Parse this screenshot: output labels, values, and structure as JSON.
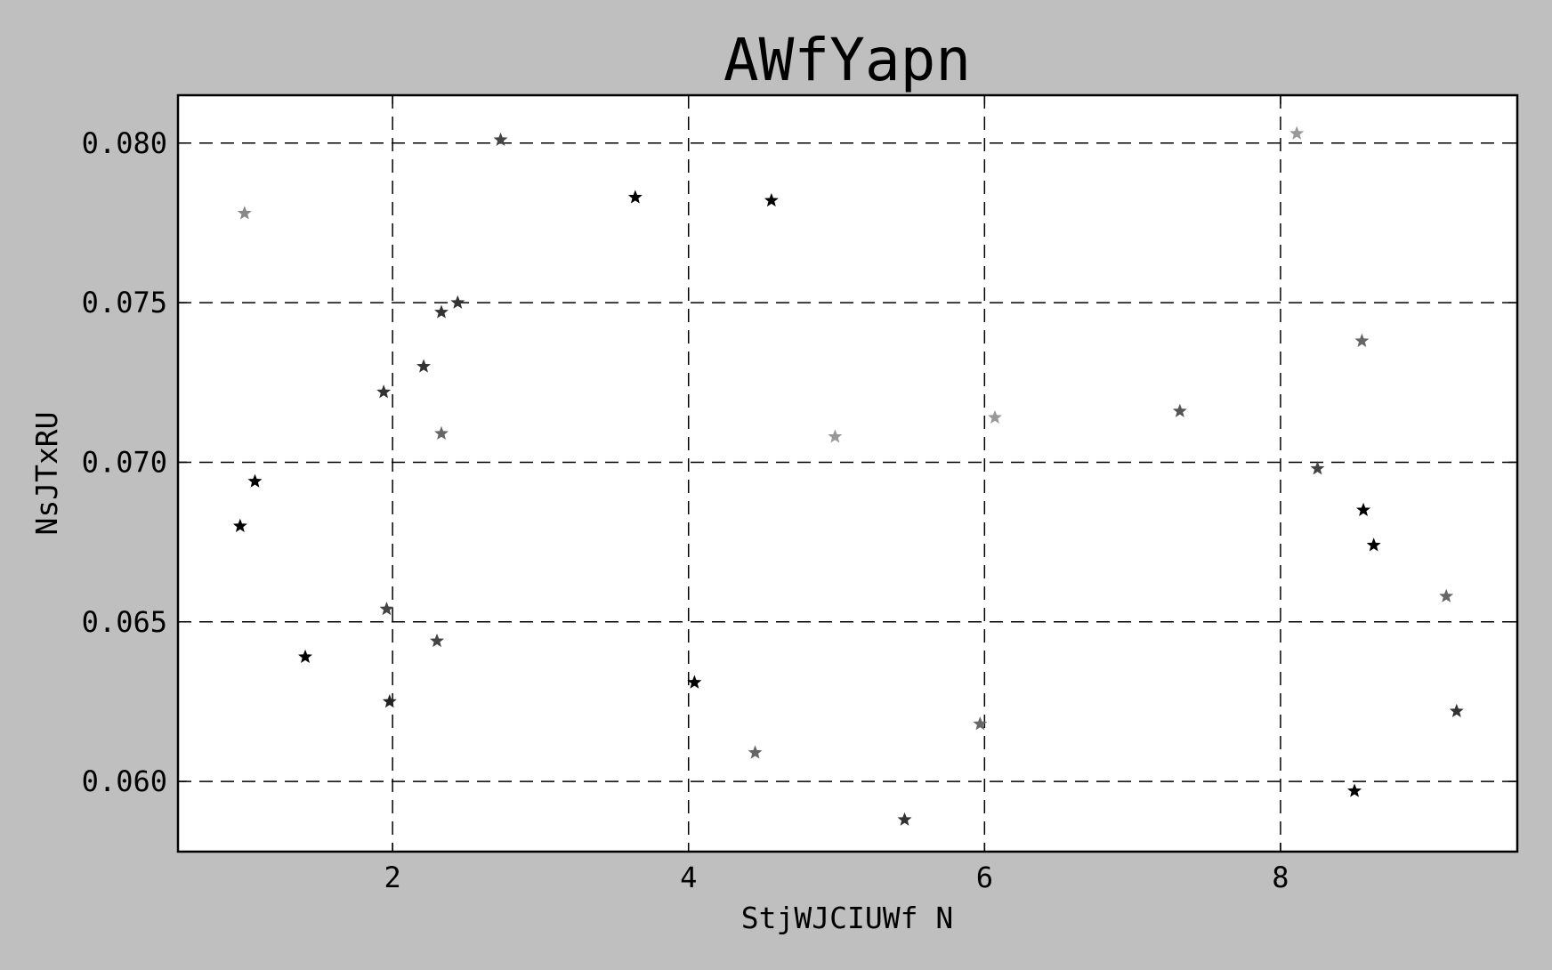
{
  "chart_data": {
    "type": "scatter",
    "title": "AWfYapn",
    "xlabel": "StjWJCIUWf N",
    "ylabel": "NsJTxRU",
    "xlim": [
      0.55,
      9.6
    ],
    "ylim": [
      0.0578,
      0.0815
    ],
    "x_ticks": [
      2,
      4,
      6,
      8
    ],
    "x_tick_labels": [
      "2",
      "4",
      "6",
      "8"
    ],
    "y_ticks": [
      0.06,
      0.065,
      0.07,
      0.075,
      0.08
    ],
    "y_tick_labels": [
      "0.060",
      "0.065",
      "0.070",
      "0.075",
      "0.080"
    ],
    "grid": true,
    "grid_style": "dashed",
    "background": "#bfbfbf",
    "plot_background": "#ffffff",
    "marker": "star",
    "points": [
      {
        "x": 0.97,
        "y": 0.068,
        "color": "#000000"
      },
      {
        "x": 1.0,
        "y": 0.0778,
        "color": "#888888"
      },
      {
        "x": 1.07,
        "y": 0.0694,
        "color": "#000000"
      },
      {
        "x": 1.41,
        "y": 0.0639,
        "color": "#000000"
      },
      {
        "x": 1.94,
        "y": 0.0722,
        "color": "#333333"
      },
      {
        "x": 1.96,
        "y": 0.0654,
        "color": "#444444"
      },
      {
        "x": 1.98,
        "y": 0.0625,
        "color": "#222222"
      },
      {
        "x": 2.21,
        "y": 0.073,
        "color": "#333333"
      },
      {
        "x": 2.3,
        "y": 0.0644,
        "color": "#444444"
      },
      {
        "x": 2.33,
        "y": 0.0747,
        "color": "#333333"
      },
      {
        "x": 2.33,
        "y": 0.0709,
        "color": "#666666"
      },
      {
        "x": 2.44,
        "y": 0.075,
        "color": "#333333"
      },
      {
        "x": 2.73,
        "y": 0.0801,
        "color": "#444444"
      },
      {
        "x": 3.64,
        "y": 0.0783,
        "color": "#000000"
      },
      {
        "x": 4.04,
        "y": 0.0631,
        "color": "#000000"
      },
      {
        "x": 4.45,
        "y": 0.0609,
        "color": "#666666"
      },
      {
        "x": 4.56,
        "y": 0.0782,
        "color": "#000000"
      },
      {
        "x": 4.99,
        "y": 0.0708,
        "color": "#999999"
      },
      {
        "x": 5.46,
        "y": 0.0588,
        "color": "#333333"
      },
      {
        "x": 5.97,
        "y": 0.0618,
        "color": "#666666"
      },
      {
        "x": 6.07,
        "y": 0.0714,
        "color": "#999999"
      },
      {
        "x": 7.32,
        "y": 0.0716,
        "color": "#555555"
      },
      {
        "x": 8.11,
        "y": 0.0803,
        "color": "#999999"
      },
      {
        "x": 8.25,
        "y": 0.0698,
        "color": "#444444"
      },
      {
        "x": 8.5,
        "y": 0.0597,
        "color": "#000000"
      },
      {
        "x": 8.55,
        "y": 0.0738,
        "color": "#666666"
      },
      {
        "x": 8.56,
        "y": 0.0685,
        "color": "#000000"
      },
      {
        "x": 8.63,
        "y": 0.0674,
        "color": "#000000"
      },
      {
        "x": 9.12,
        "y": 0.0658,
        "color": "#666666"
      },
      {
        "x": 9.19,
        "y": 0.0622,
        "color": "#333333"
      }
    ]
  }
}
